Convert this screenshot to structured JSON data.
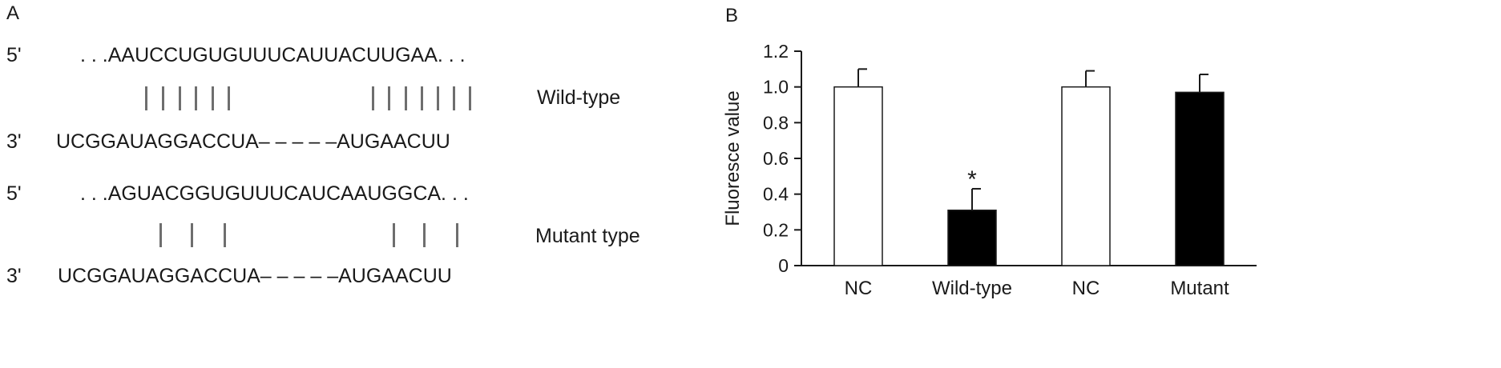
{
  "panel_a": {
    "label": "A",
    "rows": [
      {
        "prime": "5'",
        "sequence": ". . .AAUCCUGUGUUUCAUUACUUGAA. . ."
      },
      {
        "prime": "3'",
        "sequence": "UCGGAUAGGACCUA– – – – –AUGAACUU"
      },
      {
        "prime": "5'",
        "sequence": ". . .AGUACGGUGUUUCAUCAAUGGCA. . ."
      },
      {
        "prime": "3'",
        "sequence": "UCGGAUAGGACCUA– – – – –AUGAACUU"
      }
    ],
    "pairings": [
      {
        "label": "Wild-type",
        "left_ticks": 6,
        "right_ticks": 7
      },
      {
        "label": "Mutant type",
        "left_ticks": 3,
        "right_ticks": 3
      }
    ]
  },
  "panel_b": {
    "label": "B",
    "chart_data": {
      "type": "bar",
      "categories": [
        "NC",
        "Wild-type",
        "NC",
        "Mutant"
      ],
      "values": [
        1.0,
        0.31,
        1.0,
        0.97
      ],
      "errors": [
        0.1,
        0.12,
        0.09,
        0.1
      ],
      "bar_colors": [
        "#ffffff",
        "#000000",
        "#ffffff",
        "#000000"
      ],
      "significance": [
        "",
        "*",
        "",
        ""
      ],
      "ylabel": "Fluoresce value",
      "xlabel": "",
      "title": "",
      "ylim": [
        0,
        1.2
      ],
      "yticks": [
        "0",
        "0.2",
        "0.4",
        "0.6",
        "0.8",
        "1.0",
        "1.2"
      ],
      "grid": false,
      "legend": "none"
    }
  }
}
